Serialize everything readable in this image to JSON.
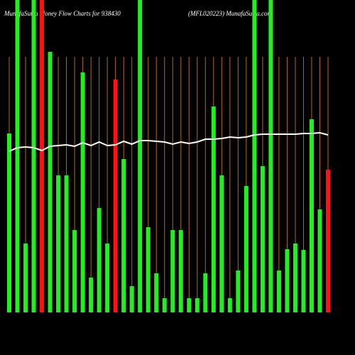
{
  "chart_data": {
    "type": "bar",
    "title": "MunafaSutra Money Flow Charts for 938430",
    "subtitle": "(MFL020223) MunafaSutra.com",
    "categories": [
      null,
      null,
      null,
      null,
      null,
      null,
      null,
      null,
      null,
      null,
      null,
      null,
      null,
      null,
      null,
      null,
      null,
      null,
      null,
      null,
      null,
      null,
      null,
      null,
      null,
      null,
      null,
      null,
      null,
      null,
      null,
      null,
      null,
      null,
      null,
      null,
      null,
      null,
      null,
      null
    ],
    "values": [
      252,
      440,
      97,
      440,
      440,
      367,
      193,
      193,
      116,
      338,
      49,
      147,
      97,
      328,
      216,
      37,
      440,
      120,
      55,
      20,
      116,
      116,
      20,
      20,
      55,
      290,
      193,
      20,
      59,
      178,
      440,
      206,
      440,
      59,
      89,
      97,
      88,
      272,
      145,
      201
    ],
    "bar_colors": [
      "#22ee22",
      "#22ee22",
      "#22ee22",
      "#22ee22",
      "#ff1111",
      "#22ee22",
      "#22ee22",
      "#22ee22",
      "#22ee22",
      "#22ee22",
      "#22ee22",
      "#22ee22",
      "#22ee22",
      "#ff1111",
      "#22ee22",
      "#22ee22",
      "#22ee22",
      "#22ee22",
      "#22ee22",
      "#22ee22",
      "#22ee22",
      "#22ee22",
      "#22ee22",
      "#22ee22",
      "#22ee22",
      "#22ee22",
      "#22ee22",
      "#22ee22",
      "#22ee22",
      "#22ee22",
      "#22ee22",
      "#22ee22",
      "#22ee22",
      "#22ee22",
      "#22ee22",
      "#22ee22",
      "#22ee22",
      "#22ee22",
      "#22ee22",
      "#ff1111"
    ],
    "line_values": [
      227,
      232,
      233,
      232,
      228,
      234,
      235,
      236,
      234,
      239,
      235,
      240,
      235,
      236,
      241,
      237,
      242,
      242,
      241,
      240,
      237,
      240,
      238,
      240,
      244,
      244,
      245,
      247,
      246,
      247,
      250,
      251,
      251,
      251,
      251,
      251,
      252,
      252,
      253,
      250
    ],
    "line_color": "#ffffff",
    "grid_color": "#b86b00",
    "ylim": [
      0,
      440
    ]
  }
}
